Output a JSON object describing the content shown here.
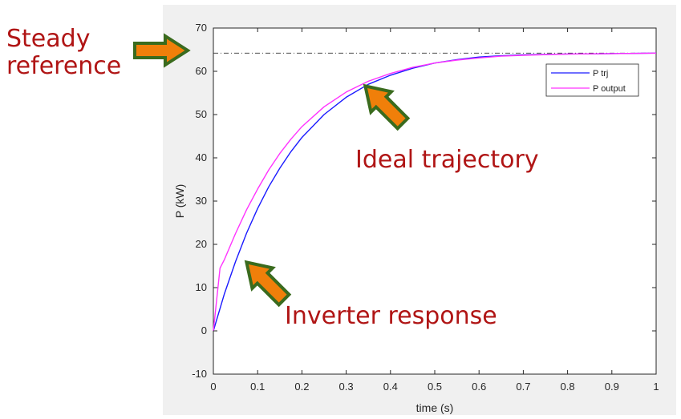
{
  "chart_data": {
    "type": "line",
    "title": "",
    "xlabel": "time (s)",
    "ylabel": "P (kW)",
    "xlim": [
      0,
      1
    ],
    "ylim": [
      -10,
      70
    ],
    "xticks": [
      "0",
      "0.1",
      "0.2",
      "0.3",
      "0.4",
      "0.5",
      "0.6",
      "0.7",
      "0.8",
      "0.9",
      "1"
    ],
    "yticks": [
      "-10",
      "0",
      "10",
      "20",
      "30",
      "40",
      "50",
      "60",
      "70"
    ],
    "grid": false,
    "legend_position": "top-right",
    "reference_line": {
      "y": 64.2,
      "style": "dash-dot",
      "color": "#333333"
    },
    "series": [
      {
        "name": "P trj",
        "color": "#1a1aff",
        "x": [
          0,
          0.025,
          0.05,
          0.075,
          0.1,
          0.125,
          0.15,
          0.175,
          0.2,
          0.25,
          0.3,
          0.35,
          0.4,
          0.45,
          0.5,
          0.55,
          0.6,
          0.65,
          0.7,
          0.8,
          0.9,
          1.0
        ],
        "y": [
          0,
          8.6,
          16.0,
          22.6,
          28.3,
          33.3,
          37.6,
          41.4,
          44.7,
          50.0,
          54.0,
          57.0,
          59.1,
          60.7,
          61.9,
          62.7,
          63.3,
          63.6,
          63.8,
          64.0,
          64.1,
          64.2
        ]
      },
      {
        "name": "P output",
        "color": "#ff33ff",
        "x": [
          0,
          0.015,
          0.025,
          0.05,
          0.075,
          0.1,
          0.125,
          0.15,
          0.175,
          0.2,
          0.25,
          0.3,
          0.35,
          0.4,
          0.45,
          0.5,
          0.55,
          0.6,
          0.65,
          0.7,
          0.8,
          0.9,
          1.0
        ],
        "y": [
          0,
          14.5,
          16.5,
          22.5,
          28.0,
          32.8,
          37.2,
          41.0,
          44.3,
          47.2,
          51.8,
          55.2,
          57.7,
          59.5,
          60.9,
          61.9,
          62.6,
          63.1,
          63.5,
          63.7,
          64.0,
          64.1,
          64.2
        ]
      }
    ]
  },
  "callouts": {
    "steady_line1": "Steady",
    "steady_line2": "reference",
    "ideal": "Ideal trajectory",
    "inverter": "Inverter response",
    "arrow_fill": "#f07f0a",
    "arrow_stroke": "#3a6b1e"
  },
  "colors": {
    "plot_bg": "#ffffff",
    "figure_bg": "#f0f0f0",
    "callout_text": "#b01515"
  }
}
